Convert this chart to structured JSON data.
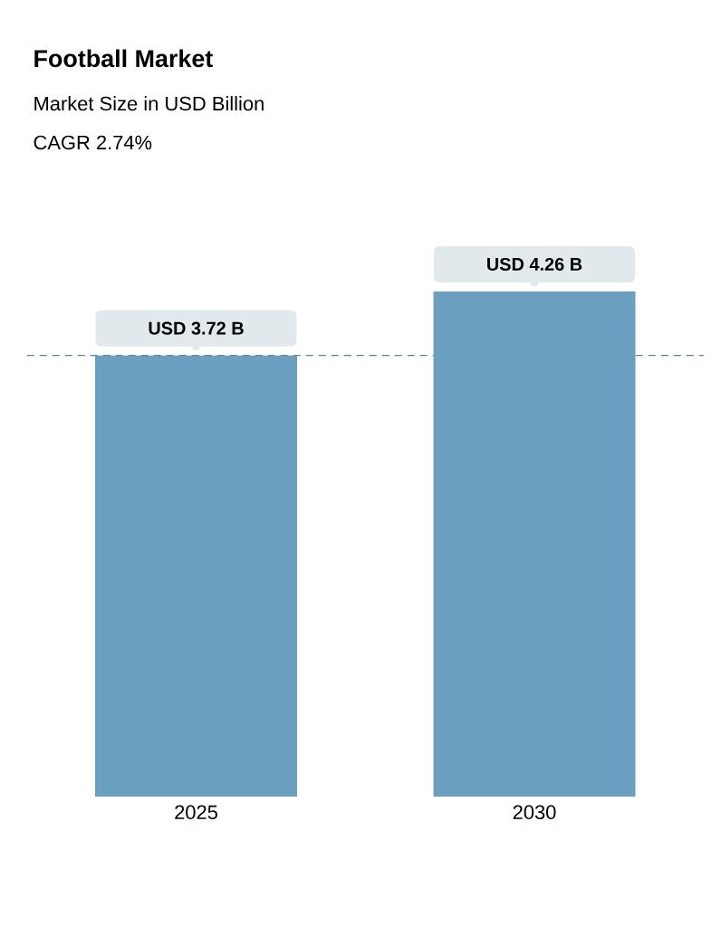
{
  "chart_data": {
    "type": "bar",
    "title": "Football Market",
    "subtitle": "Market Size in USD Billion",
    "annotations": [
      "CAGR 2.74%"
    ],
    "categories": [
      "2025",
      "2030"
    ],
    "values": [
      3.72,
      4.26
    ],
    "color": "#6a9fc0",
    "value_labels": [
      "USD 3.72 B",
      "USD 4.26 B"
    ],
    "ref_lines": [
      {
        "axis": "y",
        "value": 3.72,
        "color": "#5b7f99",
        "line_style": "dashed"
      }
    ]
  }
}
